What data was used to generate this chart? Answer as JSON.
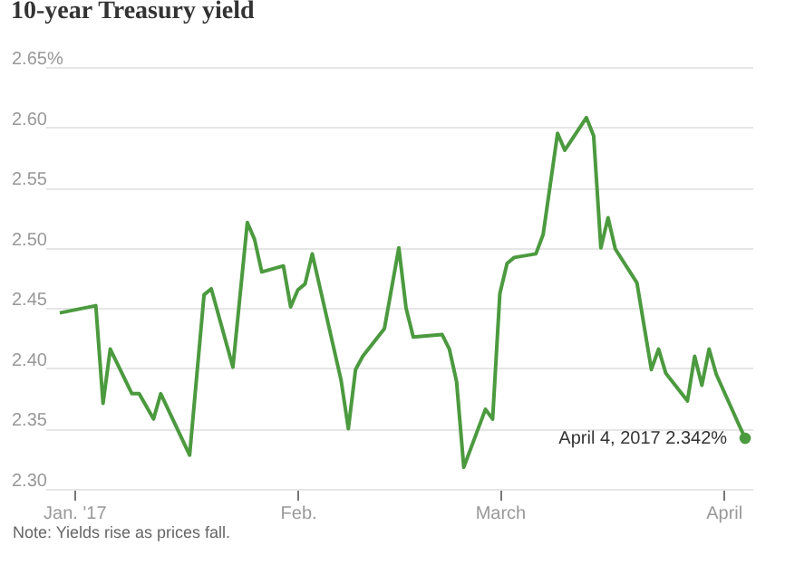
{
  "chart_data": {
    "type": "line",
    "title": "10-year Treasury yield",
    "x": [
      "2016-12-30",
      "2017-01-04",
      "2017-01-05",
      "2017-01-06",
      "2017-01-09",
      "2017-01-10",
      "2017-01-12",
      "2017-01-13",
      "2017-01-17",
      "2017-01-19",
      "2017-01-20",
      "2017-01-23",
      "2017-01-25",
      "2017-01-26",
      "2017-01-27",
      "2017-01-30",
      "2017-01-31",
      "2017-02-01",
      "2017-02-02",
      "2017-02-03",
      "2017-02-07",
      "2017-02-08",
      "2017-02-09",
      "2017-02-10",
      "2017-02-13",
      "2017-02-15",
      "2017-02-16",
      "2017-02-17",
      "2017-02-21",
      "2017-02-22",
      "2017-02-23",
      "2017-02-24",
      "2017-02-27",
      "2017-02-28",
      "2017-03-01",
      "2017-03-02",
      "2017-03-03",
      "2017-03-06",
      "2017-03-07",
      "2017-03-09",
      "2017-03-10",
      "2017-03-13",
      "2017-03-14",
      "2017-03-15",
      "2017-03-16",
      "2017-03-17",
      "2017-03-20",
      "2017-03-22",
      "2017-03-23",
      "2017-03-24",
      "2017-03-27",
      "2017-03-28",
      "2017-03-29",
      "2017-03-30",
      "2017-03-31",
      "2017-04-03",
      "2017-04-04"
    ],
    "series": [
      {
        "color": "#4c9a3f",
        "values": [
          2.446,
          2.452,
          2.371,
          2.416,
          2.379,
          2.379,
          2.358,
          2.379,
          2.328,
          2.461,
          2.466,
          2.401,
          2.521,
          2.507,
          2.48,
          2.485,
          2.451,
          2.465,
          2.47,
          2.495,
          2.39,
          2.35,
          2.399,
          2.41,
          2.433,
          2.5,
          2.45,
          2.426,
          2.428,
          2.416,
          2.389,
          2.318,
          2.366,
          2.358,
          2.462,
          2.487,
          2.492,
          2.495,
          2.511,
          2.595,
          2.581,
          2.608,
          2.593,
          2.5,
          2.525,
          2.499,
          2.471,
          2.399,
          2.416,
          2.396,
          2.373,
          2.41,
          2.386,
          2.416,
          2.395,
          2.355,
          2.342
        ]
      }
    ],
    "xlim": [
      "2016-12-28",
      "2017-04-05"
    ],
    "xticks": [
      {
        "value": "2017-01-01",
        "label": "Jan. '17"
      },
      {
        "value": "2017-02-01",
        "label": "Feb."
      },
      {
        "value": "2017-03-01",
        "label": "March"
      },
      {
        "value": "2017-04-01",
        "label": "April"
      }
    ],
    "ylim": [
      2.3,
      2.65
    ],
    "yticks": [
      {
        "value": 2.3,
        "label": "2.30"
      },
      2.35,
      {
        "value": 2.4,
        "label": "2.40"
      },
      2.45,
      {
        "value": 2.5,
        "label": "2.50"
      },
      2.55,
      {
        "value": 2.6,
        "label": "2.60"
      },
      {
        "value": 2.65,
        "label": "2.65%"
      }
    ],
    "grid": "y",
    "annotations": [
      {
        "text": "April 4, 2017  2.342%",
        "x": "2017-04-04",
        "y": 2.342
      },
      "Note: Yields rise as prices fall."
    ]
  }
}
